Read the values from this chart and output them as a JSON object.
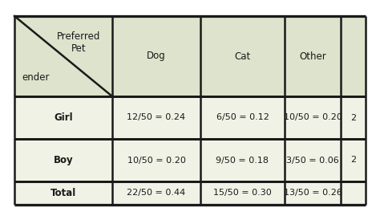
{
  "header_bg": "#dde3cc",
  "data_row_bg": "#f0f2e6",
  "white_bg": "#ffffff",
  "border_color": "#1a1a1a",
  "text_color": "#1a1a1a",
  "col_headers": [
    "Dog",
    "Cat",
    "Other",
    ""
  ],
  "row_headers": [
    "Girl",
    "Boy",
    "Total"
  ],
  "cells": [
    [
      "12/50 = 0.24",
      "6/50 = 0.12",
      "10/50 = 0.20",
      "2"
    ],
    [
      "10/50 = 0.20",
      "9/50 = 0.18",
      "3/50 = 0.06",
      "2"
    ],
    [
      "22/50 = 0.44",
      "15/50 = 0.30",
      "13/50 = 0.26",
      ""
    ]
  ],
  "top_left_top_label": "Preferred\nPet",
  "top_left_bot_label": "ender",
  "font_size": 8.0,
  "header_font_size": 8.5,
  "fig_width": 4.74,
  "fig_height": 2.74,
  "dpi": 100
}
